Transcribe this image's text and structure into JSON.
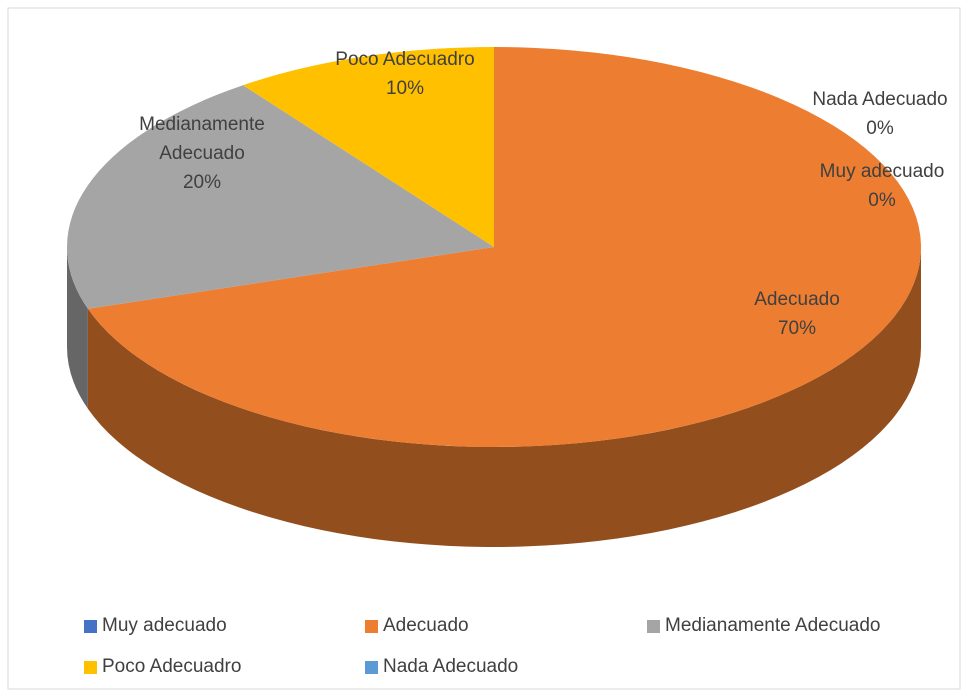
{
  "chart_data": {
    "type": "pie",
    "categories": [
      "Muy adecuado",
      "Adecuado",
      "Medianamente Adecuado",
      "Poco Adecuadro",
      "Nada Adecuado"
    ],
    "values": [
      0,
      70,
      20,
      10,
      0
    ],
    "value_labels": [
      "0%",
      "70%",
      "20%",
      "10%",
      "0%"
    ],
    "colors": [
      "#4472c4",
      "#ed7d31",
      "#a5a5a5",
      "#ffc000",
      "#5b9bd5"
    ],
    "legend": "bottom"
  }
}
